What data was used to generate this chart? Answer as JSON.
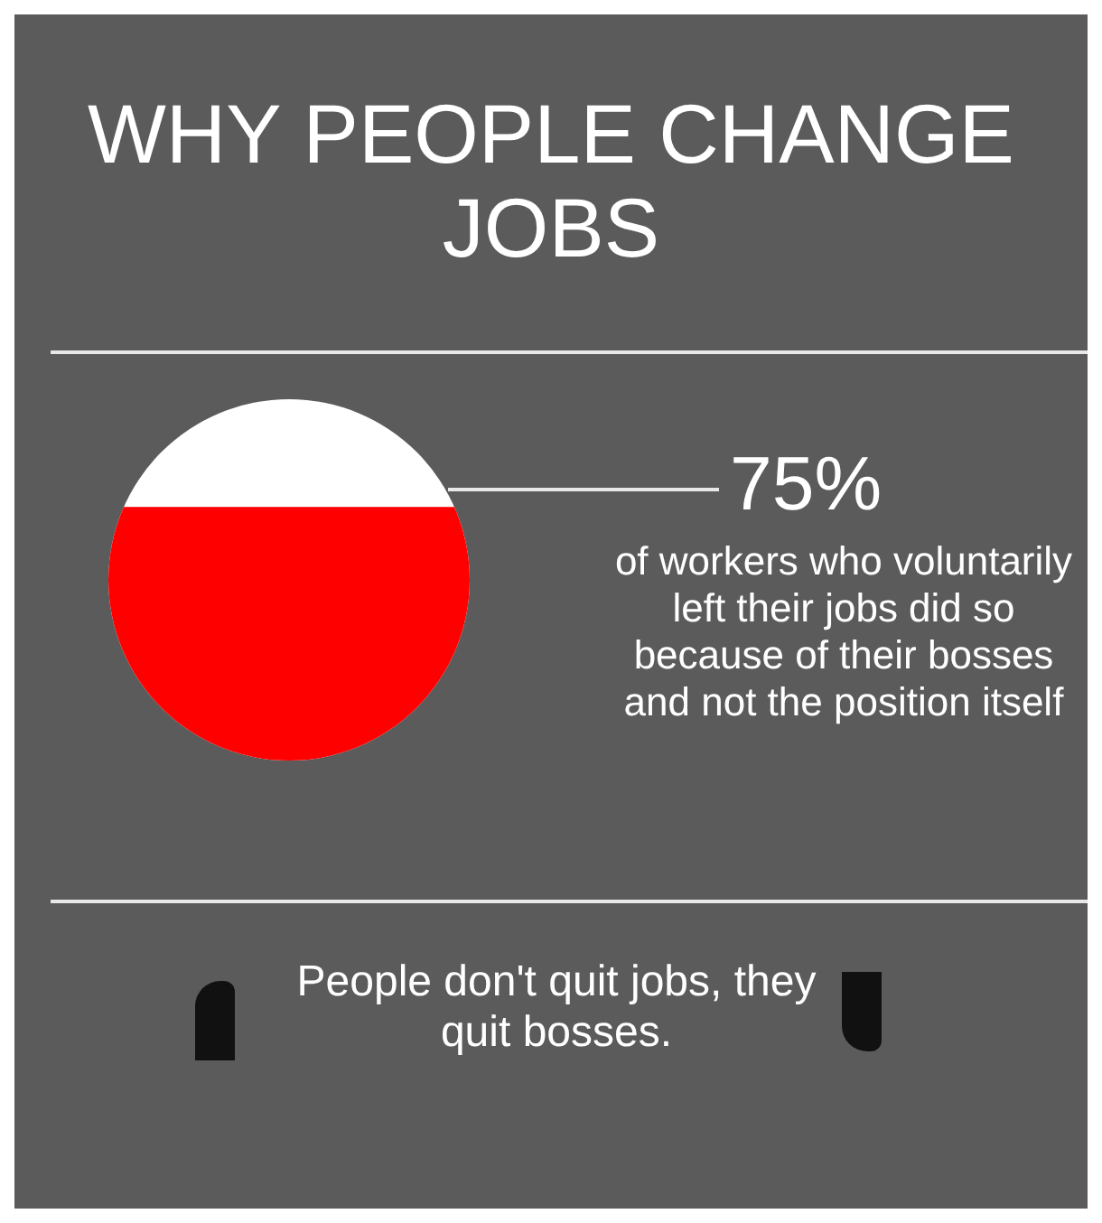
{
  "chart_data": {
    "type": "other",
    "title": "WHY PEOPLE CHANGE JOBS",
    "categories": [
      null
    ],
    "values": [
      75
    ],
    "value_labels": [
      "75%"
    ],
    "colors": [
      "#ff0000"
    ],
    "annotations": [
      "of workers who voluntarily left their jobs did so because of their bosses and not the position itself",
      "People don't quit jobs, they quit bosses."
    ]
  }
}
